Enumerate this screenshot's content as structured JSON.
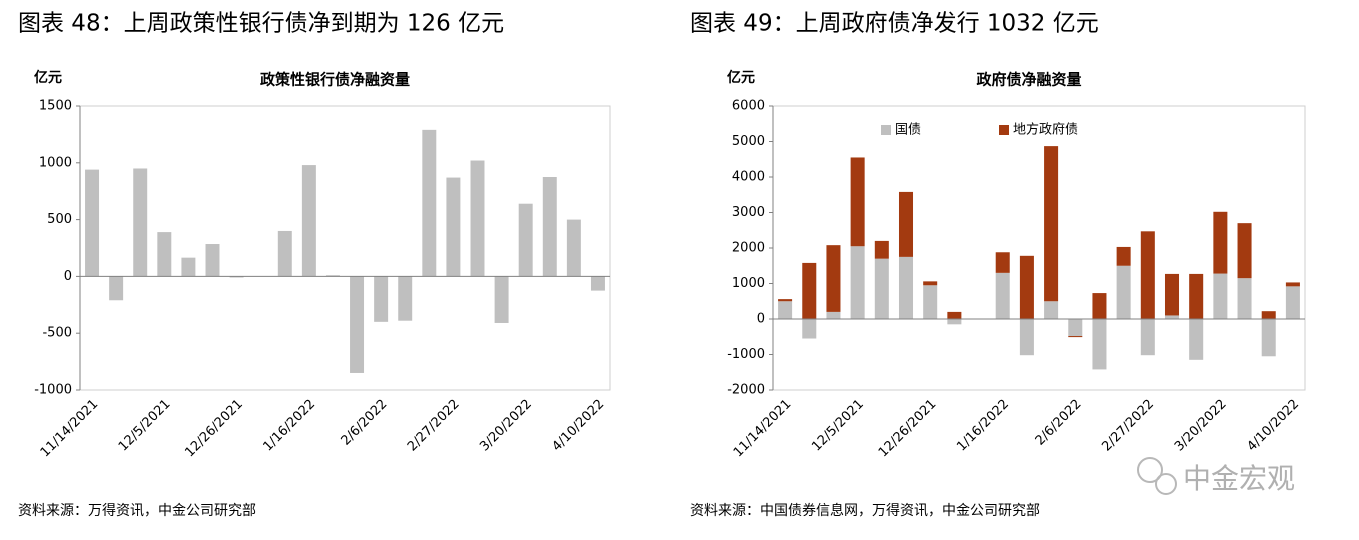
{
  "chart_data": [
    {
      "type": "bar",
      "figure_title": "图表 48：上周政策性银行债净到期为 126 亿元",
      "title": "政策性银行债净融资量",
      "ylabel": "亿元",
      "categories": [
        "11/14/2021",
        null,
        null,
        "12/5/2021",
        null,
        null,
        "12/26/2021",
        null,
        null,
        "1/16/2022",
        null,
        null,
        "2/6/2022",
        null,
        null,
        "2/27/2022",
        null,
        null,
        "3/20/2022",
        null,
        null,
        "4/10/2022"
      ],
      "values": [
        940,
        -210,
        950,
        390,
        165,
        285,
        -10,
        0,
        400,
        980,
        10,
        -850,
        -400,
        -390,
        1290,
        870,
        1020,
        -410,
        640,
        875,
        500,
        -125
      ],
      "color": "#bfbfbf",
      "ylim": [
        -1000,
        1500
      ],
      "yticks": [
        -1000,
        -500,
        0,
        500,
        1000,
        1500
      ],
      "source": "资料来源：万得资讯，中金公司研究部"
    },
    {
      "type": "bar",
      "stacked": true,
      "figure_title": "图表 49：上周政府债净发行 1032 亿元",
      "title": "政府债净融资量",
      "ylabel": "亿元",
      "categories": [
        "11/14/2021",
        null,
        null,
        "12/5/2021",
        null,
        null,
        "12/26/2021",
        null,
        null,
        "1/16/2022",
        null,
        null,
        "2/6/2022",
        null,
        null,
        "2/27/2022",
        null,
        null,
        "3/20/2022",
        null,
        null,
        "4/10/2022"
      ],
      "series": [
        {
          "name": "国债",
          "color": "#bfbfbf",
          "values": [
            500,
            -550,
            200,
            2050,
            1700,
            1750,
            950,
            -150,
            0,
            1300,
            -1020,
            500,
            -480,
            -1420,
            1500,
            -1020,
            100,
            -1150,
            1280,
            1150,
            -1050,
            920
          ]
        },
        {
          "name": "地方政府债",
          "color": "#a33a10",
          "values": [
            60,
            1580,
            1880,
            2500,
            500,
            1830,
            110,
            200,
            0,
            580,
            1780,
            4370,
            -30,
            730,
            530,
            2470,
            1170,
            1270,
            1740,
            1550,
            220,
            110
          ]
        }
      ],
      "legend": "upper left",
      "ylim": [
        -2000,
        6000
      ],
      "yticks": [
        -2000,
        -1000,
        0,
        1000,
        2000,
        3000,
        4000,
        5000,
        6000
      ],
      "source": "资料来源：中国债券信息网，万得资讯，中金公司研究部"
    }
  ],
  "watermark": "中金宏观"
}
